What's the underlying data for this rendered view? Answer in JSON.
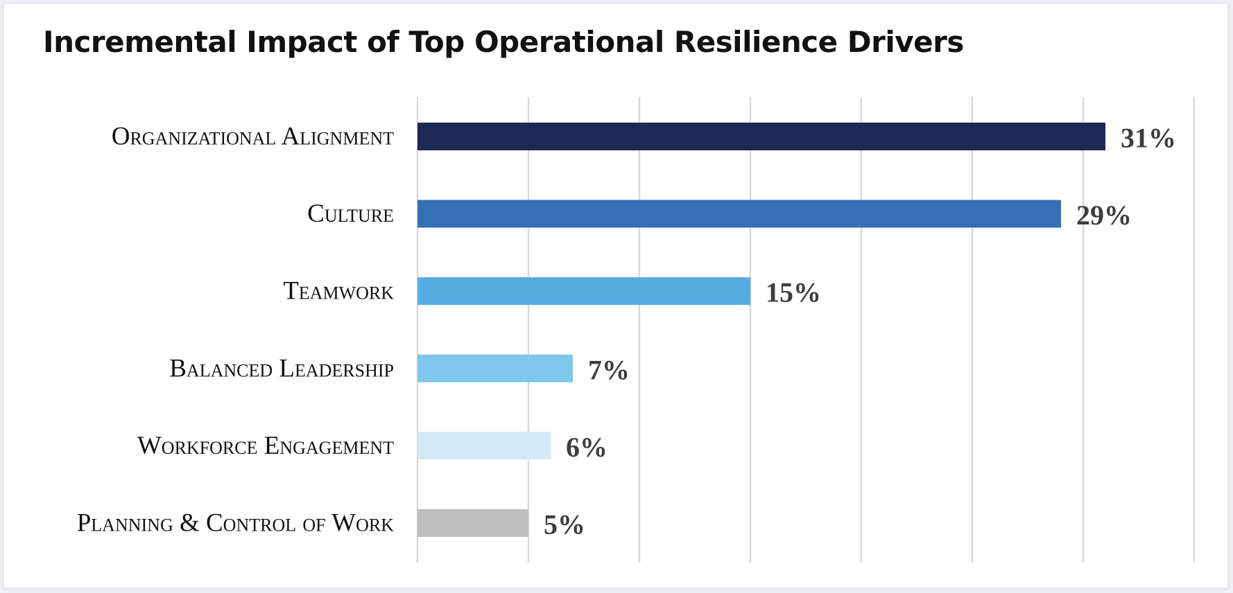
{
  "chart_data": {
    "type": "bar",
    "orientation": "horizontal",
    "title": "Incremental Impact of Top Operational Resilience Drivers",
    "categories": [
      "Organizational Alignment",
      "Culture",
      "Teamwork",
      "Balanced Leadership",
      "Workforce Engagement",
      "Planning & Control of Work"
    ],
    "values": [
      31,
      29,
      15,
      7,
      6,
      5
    ],
    "value_labels": [
      "31%",
      "29%",
      "15%",
      "7%",
      "6%",
      "5%"
    ],
    "bar_colors": [
      "#1f2756",
      "#3570b5",
      "#56abe0",
      "#80c7ee",
      "#d2e9f6",
      "#bfbfbf"
    ],
    "xlim": [
      0,
      35
    ],
    "x_gridline_step": 5,
    "grid": true,
    "legend": "none",
    "xlabel": "",
    "ylabel": ""
  }
}
